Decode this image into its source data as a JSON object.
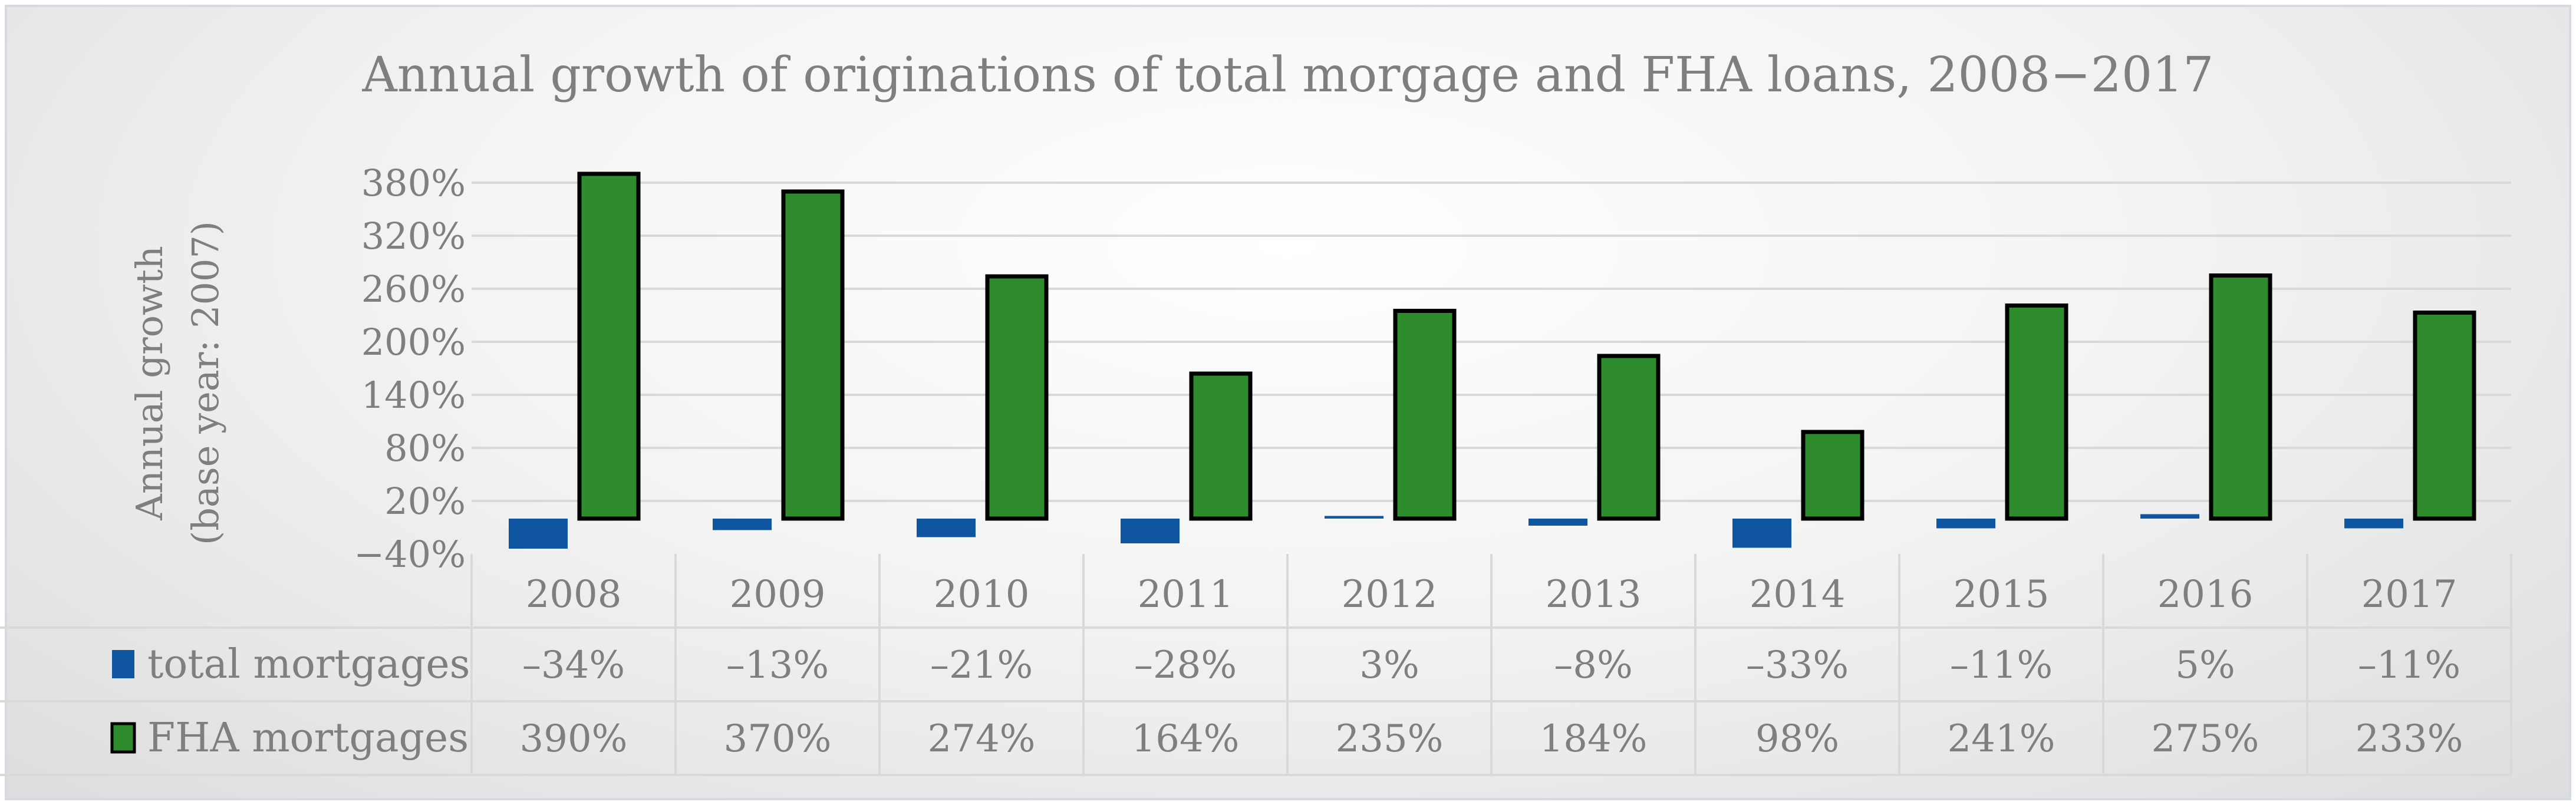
{
  "chart_data": {
    "type": "bar",
    "title": "Annual growth of originations of total morgage  and FHA  loans, 2008−2017",
    "ylabel_line1": "Annual growth",
    "ylabel_line2": "(base year: 2007)",
    "ylim": [
      -40,
      400
    ],
    "yticks": [
      -40,
      20,
      80,
      140,
      200,
      260,
      320,
      380
    ],
    "ytick_labels": [
      "−40%",
      "20%",
      "80%",
      "140%",
      "200%",
      "260%",
      "320%",
      "380%"
    ],
    "grid": true,
    "legend": "data-table",
    "categories": [
      "2008",
      "2009",
      "2010",
      "2011",
      "2012",
      "2013",
      "2014",
      "2015",
      "2016",
      "2017"
    ],
    "series": [
      {
        "name": "total mortgages",
        "color": "#0f55a0",
        "values": [
          -34,
          -13,
          -21,
          -28,
          3,
          -8,
          -33,
          -11,
          5,
          -11
        ],
        "labels": [
          "–34%",
          "–13%",
          "–21%",
          "–28%",
          "3%",
          "–8%",
          "–33%",
          "–11%",
          "5%",
          "–11%"
        ]
      },
      {
        "name": "FHA mortgages",
        "color": "#2e8b2e",
        "values": [
          390,
          370,
          274,
          164,
          235,
          184,
          98,
          241,
          275,
          233
        ],
        "labels": [
          "390%",
          "370%",
          "274%",
          "164%",
          "235%",
          "184%",
          "98%",
          "241%",
          "275%",
          "233%"
        ]
      }
    ]
  }
}
